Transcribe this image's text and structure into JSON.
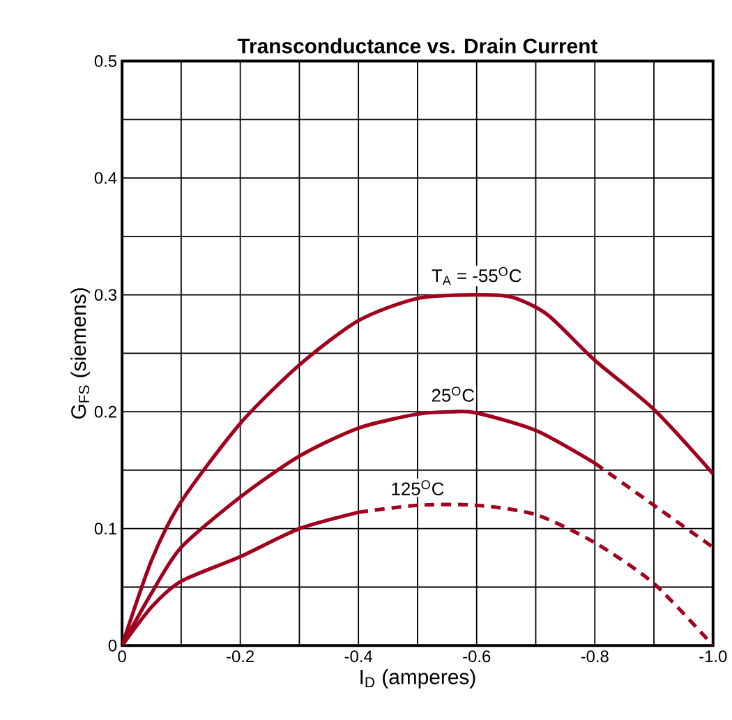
{
  "chart_data": {
    "type": "line",
    "title": "Transconductance vs. Drain Current",
    "xlabel": "I$_{D}$ (amperes)",
    "ylabel": "G$_{FS}$ (siemens)",
    "xlim": [
      0,
      -1.0
    ],
    "ylim": [
      0,
      0.5
    ],
    "xticks": [
      0,
      {
        "value": -0.1,
        "label": null
      },
      -0.2,
      {
        "value": -0.3,
        "label": null
      },
      -0.4,
      {
        "value": -0.5,
        "label": null
      },
      -0.6,
      {
        "value": -0.7,
        "label": null
      },
      -0.8,
      {
        "value": -0.9,
        "label": null
      },
      {
        "value": -1.0,
        "label": "-1.0"
      }
    ],
    "yticks": [
      0,
      {
        "value": 0.05,
        "label": null
      },
      0.1,
      {
        "value": 0.15,
        "label": null
      },
      0.2,
      {
        "value": 0.25,
        "label": null
      },
      0.3,
      {
        "value": 0.35,
        "label": null
      },
      0.4,
      {
        "value": 0.45,
        "label": null
      },
      0.5
    ],
    "grid": true,
    "marker": "none",
    "series": [
      {
        "color": "#a0001e",
        "line_style": "solid",
        "x": [
          0,
          -0.05,
          -0.1,
          -0.2,
          -0.3,
          -0.4,
          -0.5,
          -0.6,
          -0.66,
          -0.72,
          -0.8,
          -0.9,
          -1.0
        ],
        "values": [
          0,
          0.073,
          0.123,
          0.19,
          0.24,
          0.278,
          0.297,
          0.3,
          0.298,
          0.283,
          0.244,
          0.202,
          0.147
        ]
      },
      {
        "color": "#a0001e",
        "line_style": "solid",
        "x": [
          0,
          -0.05,
          -0.1,
          -0.2,
          -0.3,
          -0.4,
          -0.5,
          -0.56,
          -0.6,
          -0.7,
          -0.8
        ],
        "values": [
          0,
          0.045,
          0.084,
          0.127,
          0.162,
          0.186,
          0.198,
          0.2,
          0.199,
          0.184,
          0.156
        ]
      },
      {
        "color": "#a0001e",
        "line_style": "dashed",
        "x": [
          -0.8,
          -0.9,
          -1.0
        ],
        "values": [
          0.156,
          0.12,
          0.084
        ]
      },
      {
        "color": "#a0001e",
        "line_style": "solid",
        "x": [
          0,
          -0.05,
          -0.1,
          -0.2,
          -0.3,
          -0.4
        ],
        "values": [
          0,
          0.033,
          0.055,
          0.076,
          0.1,
          0.114
        ]
      },
      {
        "color": "#a0001e",
        "line_style": "dashed",
        "x": [
          -0.4,
          -0.5,
          -0.6,
          -0.7,
          -0.8,
          -0.9,
          -1.0
        ],
        "values": [
          0.114,
          0.12,
          0.12,
          0.112,
          0.088,
          0.053,
          0
        ]
      }
    ],
    "annotations": [
      "T$_{A}$ = -55$^{O}$C",
      "25$^{O}$C",
      "125$^{O}$C"
    ]
  }
}
